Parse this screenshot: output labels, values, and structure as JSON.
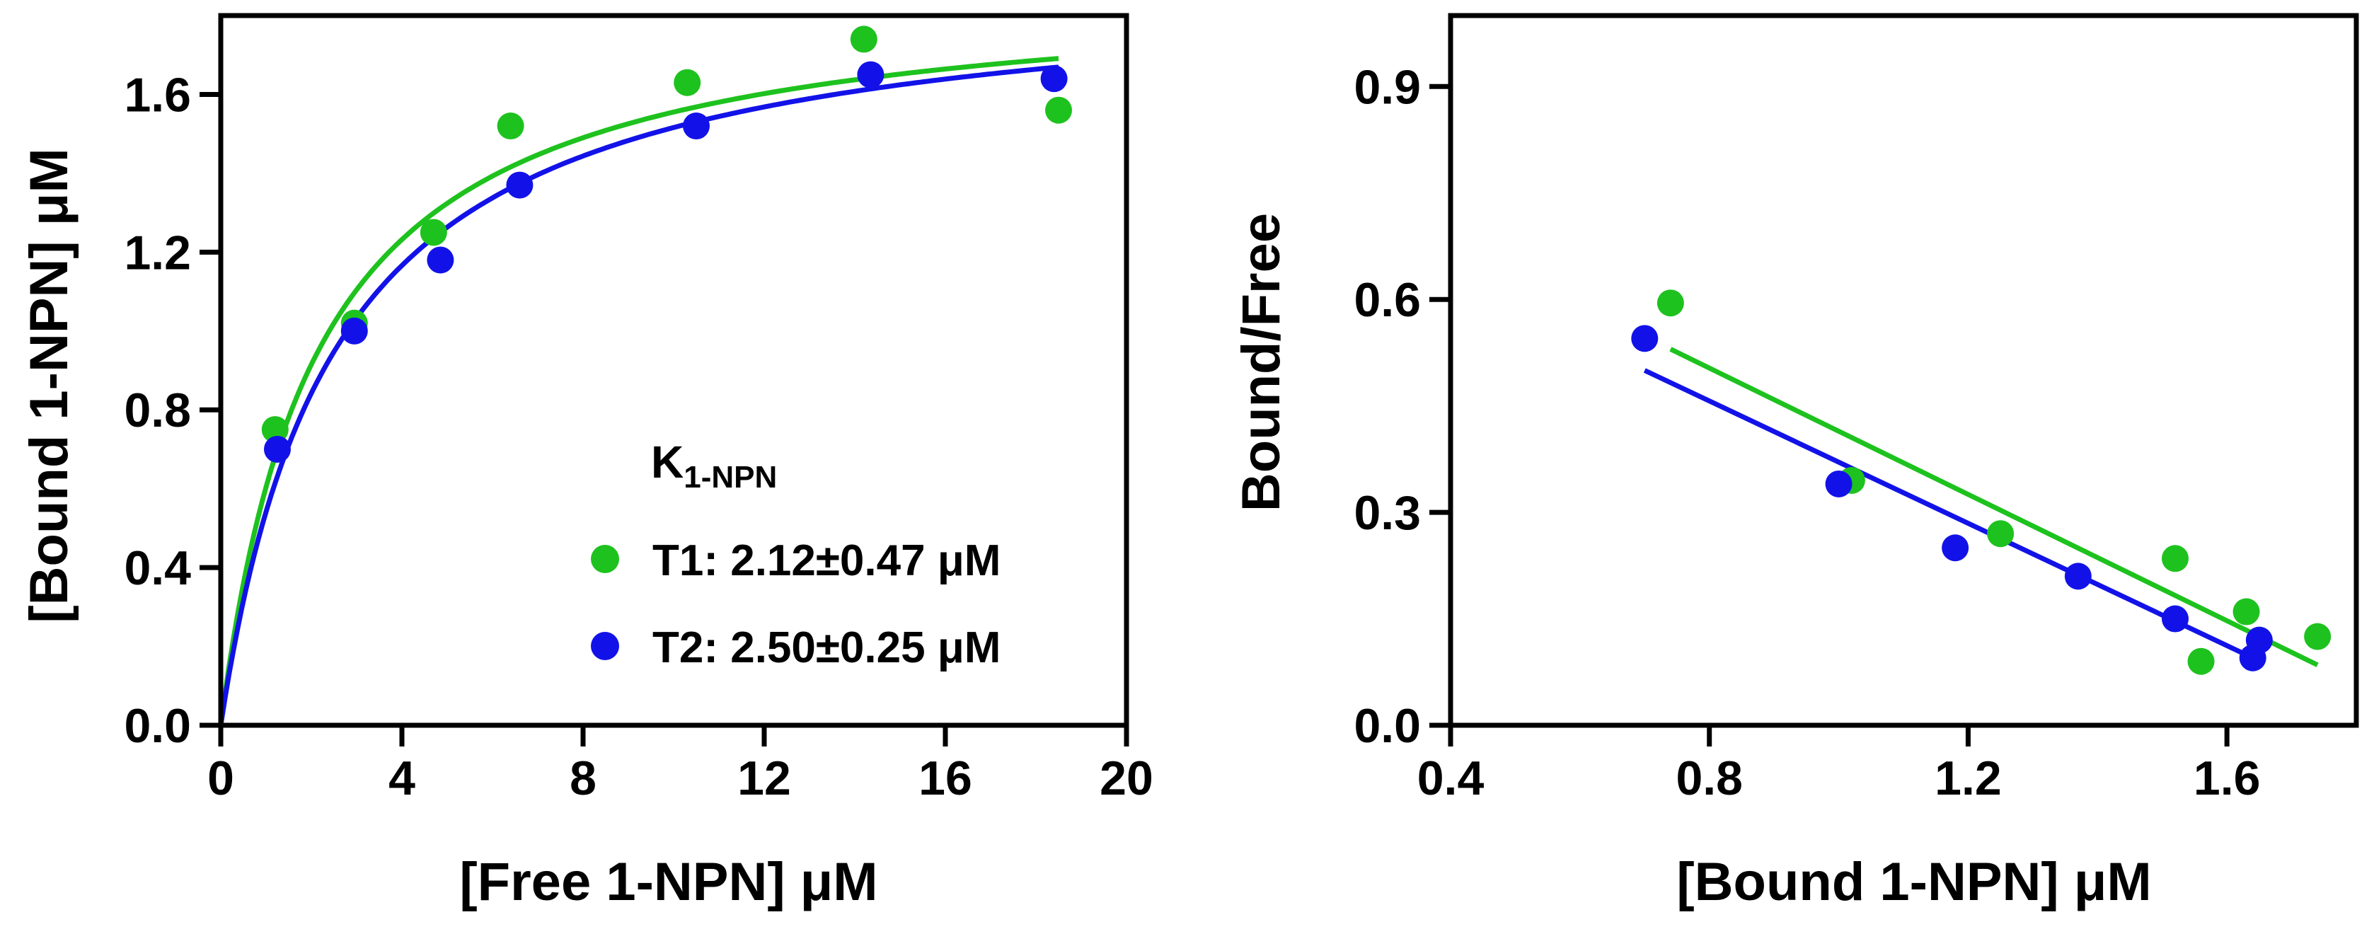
{
  "chart_data": [
    {
      "type": "scatter",
      "panel": "saturation-binding",
      "xlabel": "[Free 1-NPN] μM",
      "ylabel": "[Bound 1-NPN] μM",
      "xlim": [
        0,
        20
      ],
      "ylim": [
        0,
        1.8
      ],
      "x_ticks": [
        0,
        4,
        8,
        12,
        16,
        20
      ],
      "x_tick_labels": [
        "0",
        "4",
        "8",
        "12",
        "16",
        "20"
      ],
      "y_ticks": [
        0,
        0.4,
        0.8,
        1.2,
        1.6
      ],
      "y_tick_labels": [
        "0.0",
        "0.4",
        "0.8",
        "1.2",
        "1.6"
      ],
      "legend": {
        "title_main": "K",
        "title_sub": "1-NPN",
        "placement": "center-right",
        "entries": [
          "T1: 2.12±0.47 μM",
          "T2: 2.50±0.25 μM"
        ]
      },
      "series": [
        {
          "name": "T1",
          "color": "#1EC21E",
          "x": [
            1.2,
            2.95,
            4.7,
            6.4,
            10.3,
            14.2,
            18.5
          ],
          "y": [
            0.75,
            1.02,
            1.25,
            1.52,
            1.63,
            1.74,
            1.56
          ],
          "fit": {
            "model": "one-site",
            "bmax": 1.885,
            "kd": 2.12
          }
        },
        {
          "name": "T2",
          "color": "#1212E8",
          "x": [
            1.25,
            2.95,
            4.85,
            6.6,
            10.5,
            14.35,
            18.4
          ],
          "y": [
            0.7,
            1.0,
            1.18,
            1.37,
            1.52,
            1.65,
            1.64
          ],
          "fit": {
            "model": "one-site",
            "bmax": 1.895,
            "kd": 2.5
          }
        }
      ]
    },
    {
      "type": "scatter",
      "panel": "scatchard",
      "xlabel": "[Bound 1-NPN] μM",
      "ylabel": "Bound/Free",
      "xlim": [
        0.4,
        1.8
      ],
      "ylim": [
        0,
        1.0
      ],
      "x_ticks": [
        0.4,
        0.8,
        1.2,
        1.6
      ],
      "x_tick_labels": [
        "0.4",
        "0.8",
        "1.2",
        "1.6"
      ],
      "y_ticks": [
        0,
        0.3,
        0.6,
        0.9
      ],
      "y_tick_labels": [
        "0.0",
        "0.3",
        "0.6",
        "0.9"
      ],
      "series": [
        {
          "name": "T1",
          "color": "#1EC21E",
          "x": [
            0.74,
            1.02,
            1.25,
            1.52,
            1.63,
            1.74,
            1.56
          ],
          "y": [
            0.595,
            0.345,
            0.27,
            0.235,
            0.16,
            0.125,
            0.09
          ],
          "fit_line": {
            "x": [
              0.74,
              1.74
            ],
            "y": [
              0.53,
              0.085
            ]
          }
        },
        {
          "name": "T2",
          "color": "#1212E8",
          "x": [
            0.7,
            1.0,
            1.18,
            1.37,
            1.52,
            1.65,
            1.64
          ],
          "y": [
            0.545,
            0.34,
            0.25,
            0.21,
            0.15,
            0.12,
            0.095
          ],
          "fit_line": {
            "x": [
              0.7,
              1.64
            ],
            "y": [
              0.5,
              0.095
            ]
          }
        }
      ]
    }
  ]
}
